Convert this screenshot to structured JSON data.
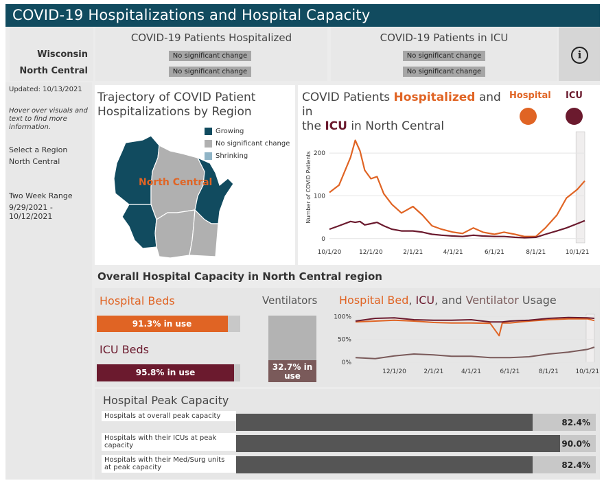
{
  "title": "COVID-19 Hospitalizations and Hospital Capacity",
  "header": {
    "state_label": "Wisconsin",
    "region_label": "North Central",
    "hospitalized_title": "COVID-19 Patients Hospitalized",
    "icu_title": "COVID-19 Patients in ICU",
    "hosp_state_status": "No significant change",
    "hosp_region_status": "No significant change",
    "icu_state_status": "No significant change",
    "icu_region_status": "No significant change",
    "info_icon": "i"
  },
  "sidebar": {
    "updated": "Updated: 10/13/2021",
    "hover_hint": "Hover over visuals and text to find more information.",
    "select_region_label": "Select a Region",
    "selected_region": "North Central",
    "range_label": "Two Week Range",
    "range_value": "9/29/2021 - 10/12/2021"
  },
  "map": {
    "title": "Trajectory of COVID Patient Hospitalizations by Region",
    "region_label": "North Central",
    "legend": [
      {
        "label": "Growing",
        "color": "#114b5f"
      },
      {
        "label": "No significant change",
        "color": "#b0b0b0"
      },
      {
        "label": "Shrinking",
        "color": "#8fb4c6"
      }
    ]
  },
  "trend": {
    "title_pre": "COVID Patients ",
    "title_hosp": "Hospitalized",
    "title_mid": " and in",
    "title_pre2": "the ",
    "title_icu": "ICU",
    "title_post": " in North Central",
    "legend_hospital": "Hospital",
    "legend_icu": "ICU",
    "hospital_color": "#e06424",
    "icu_color": "#6b1a2e"
  },
  "chart_data": [
    {
      "type": "line",
      "ylabel": "Number of COVID Patients",
      "x_ticks": [
        "10/1/20",
        "12/1/20",
        "2/1/21",
        "4/1/21",
        "6/1/21",
        "8/1/21",
        "10/1/21"
      ],
      "y_ticks": [
        "0",
        "100",
        "200"
      ],
      "ylim": [
        -10,
        250
      ],
      "x": [
        "10/1/20",
        "10/15/20",
        "11/1/20",
        "11/8/20",
        "11/15/20",
        "11/22/20",
        "12/1/20",
        "12/10/20",
        "12/20/20",
        "1/1/21",
        "1/15/21",
        "2/1/21",
        "2/15/21",
        "3/1/21",
        "3/15/21",
        "4/1/21",
        "4/15/21",
        "5/1/21",
        "5/15/21",
        "6/1/21",
        "6/15/21",
        "7/1/21",
        "7/15/21",
        "8/1/21",
        "8/15/21",
        "9/1/21",
        "9/15/21",
        "10/1/21",
        "10/12/21"
      ],
      "series": [
        {
          "name": "Hospital",
          "values": [
            108,
            125,
            190,
            230,
            205,
            160,
            140,
            145,
            105,
            80,
            60,
            75,
            55,
            30,
            22,
            15,
            12,
            25,
            15,
            10,
            15,
            10,
            5,
            5,
            25,
            55,
            95,
            115,
            135
          ]
        },
        {
          "name": "ICU",
          "values": [
            22,
            30,
            40,
            38,
            40,
            32,
            35,
            38,
            30,
            22,
            18,
            18,
            15,
            10,
            8,
            6,
            5,
            8,
            6,
            5,
            5,
            3,
            2,
            3,
            10,
            18,
            25,
            35,
            42
          ]
        }
      ]
    },
    {
      "type": "line",
      "title": "Hospital Bed, ICU, and Ventilator Usage",
      "x_ticks": [
        "12/1/20",
        "2/1/21",
        "4/1/21",
        "6/1/21",
        "8/1/21",
        "10/1/21"
      ],
      "y_ticks": [
        "0%",
        "50%",
        "100%"
      ],
      "ylim": [
        0,
        105
      ],
      "x": [
        "10/1/20",
        "11/1/20",
        "12/1/20",
        "1/1/21",
        "2/1/21",
        "3/1/21",
        "4/1/21",
        "5/1/21",
        "5/15/21",
        "5/20/21",
        "6/1/21",
        "7/1/21",
        "8/1/21",
        "9/1/21",
        "10/1/21",
        "10/12/21"
      ],
      "series": [
        {
          "name": "Hospital Bed",
          "values": [
            88,
            90,
            92,
            90,
            87,
            86,
            86,
            85,
            58,
            86,
            86,
            90,
            93,
            95,
            95,
            91
          ]
        },
        {
          "name": "ICU",
          "values": [
            90,
            96,
            97,
            93,
            92,
            92,
            93,
            88,
            88,
            88,
            90,
            92,
            96,
            98,
            97,
            96
          ]
        },
        {
          "name": "Ventilator",
          "values": [
            10,
            8,
            14,
            18,
            16,
            13,
            13,
            10,
            10,
            10,
            10,
            12,
            18,
            22,
            28,
            33
          ]
        }
      ]
    }
  ],
  "capacity": {
    "heading": "Overall Hospital Capacity in North Central region",
    "hospital_beds_label": "Hospital Beds",
    "hospital_beds_value": "91.3% in use",
    "hospital_beds_pct": 0.913,
    "icu_beds_label": "ICU Beds",
    "icu_beds_value": "95.8% in use",
    "icu_beds_pct": 0.958,
    "ventilators_label": "Ventilators",
    "ventilators_value": "32.7% in use",
    "ventilators_pct": 0.327,
    "usage_title_a": "Hospital Bed",
    "usage_title_b": ", ",
    "usage_title_c": "ICU",
    "usage_title_d": ", and ",
    "usage_title_e": "Ventilator",
    "usage_title_f": " Usage",
    "vent_color": "#7a5a5a"
  },
  "peak": {
    "title": "Hospital Peak Capacity",
    "rows": [
      {
        "label": "Hospitals at overall peak capacity",
        "value": "82.4%",
        "pct": 0.824
      },
      {
        "label": "Hospitals with their ICUs at peak capacity",
        "value": "90.0%",
        "pct": 0.9
      },
      {
        "label": "Hospitals with their Med/Surg units at peak capacity",
        "value": "82.4%",
        "pct": 0.824
      }
    ]
  }
}
